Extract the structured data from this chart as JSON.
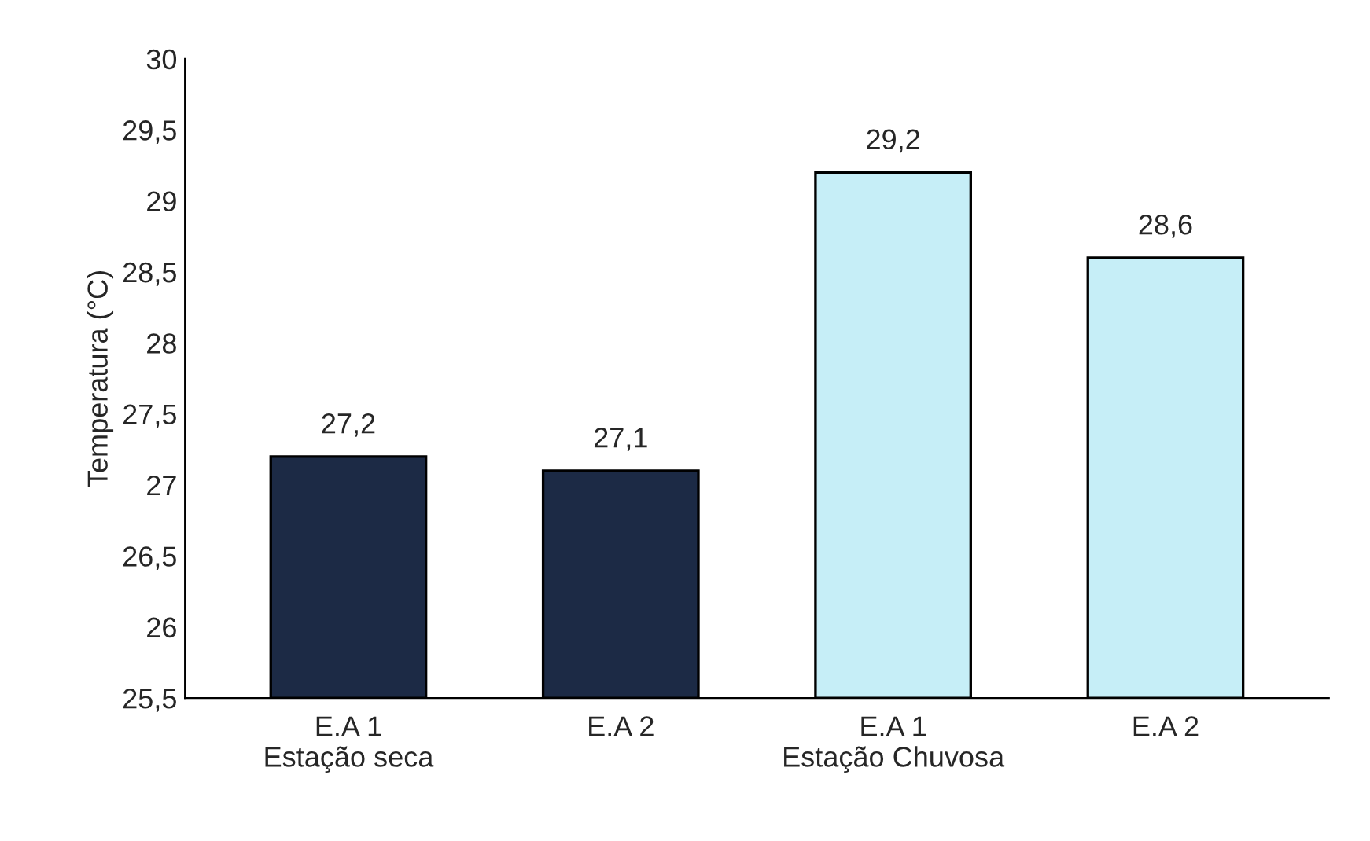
{
  "chart_data": {
    "type": "bar",
    "ylabel": "Temperatura (°C)",
    "categories": [
      "E.A 1\nEstação seca",
      "E.A 2",
      "E.A 1\nEstação Chuvosa",
      "E.A 2"
    ],
    "values": [
      27.2,
      27.1,
      29.2,
      28.6
    ],
    "value_labels": [
      "27,2",
      "27,1",
      "29,2",
      "28,6"
    ],
    "colors": [
      "#1c2a45",
      "#1c2a45",
      "#c6eef7",
      "#c6eef7"
    ],
    "ylim": [
      25.5,
      30
    ],
    "yticks": [
      {
        "value": 25.5,
        "label": "25,5"
      },
      {
        "value": 26,
        "label": "26"
      },
      {
        "value": 26.5,
        "label": "26,5"
      },
      {
        "value": 27,
        "label": "27"
      },
      {
        "value": 27.5,
        "label": "27,5"
      },
      {
        "value": 28,
        "label": "28"
      },
      {
        "value": 28.5,
        "label": "28,5"
      },
      {
        "value": 29,
        "label": "29"
      },
      {
        "value": 29.5,
        "label": "29,5"
      },
      {
        "value": 30,
        "label": "30"
      }
    ],
    "grid": false,
    "legend": false
  }
}
